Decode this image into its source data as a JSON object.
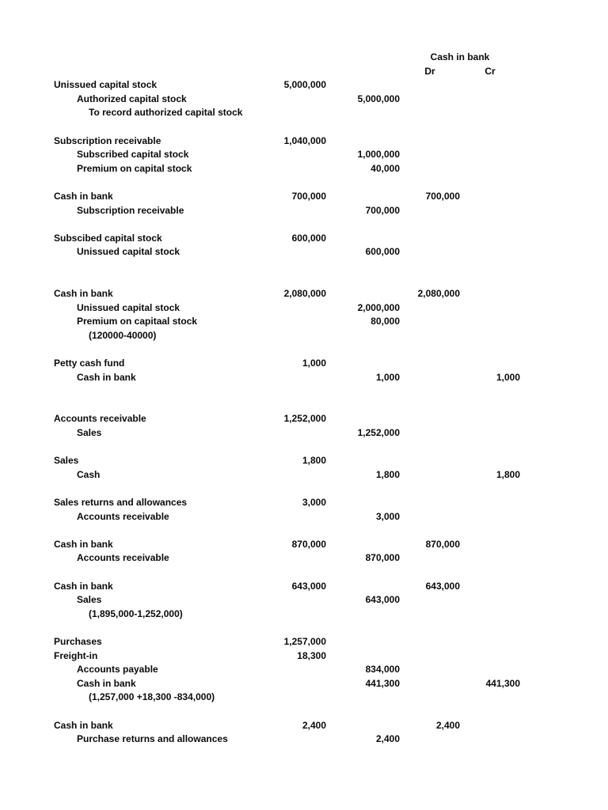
{
  "document": {
    "background": "#ffffff",
    "text_color": "#0a0a0a",
    "bank_header": {
      "group_label": "Cash in bank",
      "dr_label": "Dr",
      "cr_label": "Cr"
    },
    "rows": [
      {
        "label": "Unissued capital stock",
        "indent": 0,
        "debit": "5,000,000"
      },
      {
        "label": "Authorized capital stock",
        "indent": 1,
        "credit": "5,000,000"
      },
      {
        "label": "To record authorized capital stock",
        "indent": 2
      },
      {},
      {
        "label": "Subscription receivable",
        "indent": 0,
        "debit": "1,040,000"
      },
      {
        "label": "Subscribed capital stock",
        "indent": 1,
        "credit": "1,000,000"
      },
      {
        "label": "Premium on capital stock",
        "indent": 1,
        "credit": "40,000"
      },
      {},
      {
        "label": "Cash in bank",
        "indent": 0,
        "debit": "700,000",
        "bank_dr": "700,000"
      },
      {
        "label": "Subscription receivable",
        "indent": 1,
        "credit": "700,000"
      },
      {},
      {
        "label": "Subscibed capital stock",
        "indent": 0,
        "debit": "600,000"
      },
      {
        "label": "Unissued capital stock",
        "indent": 1,
        "credit": "600,000"
      },
      {},
      {},
      {
        "label": "Cash in bank",
        "indent": 0,
        "debit": "2,080,000",
        "bank_dr": "2,080,000"
      },
      {
        "label": "Unissued capital stock",
        "indent": 1,
        "credit": "2,000,000"
      },
      {
        "label": "Premium on capitaal stock",
        "indent": 1,
        "credit": "80,000"
      },
      {
        "label": "(120000-40000)",
        "indent": 2
      },
      {},
      {
        "label": "Petty cash fund",
        "indent": 0,
        "debit": "1,000"
      },
      {
        "label": "Cash in bank",
        "indent": 1,
        "credit": "1,000",
        "bank_cr": "1,000"
      },
      {},
      {},
      {
        "label": "Accounts receivable",
        "indent": 0,
        "debit": "1,252,000"
      },
      {
        "label": "Sales",
        "indent": 1,
        "credit": "1,252,000"
      },
      {},
      {
        "label": "Sales",
        "indent": 0,
        "debit": "1,800"
      },
      {
        "label": "Cash",
        "indent": 1,
        "credit": "1,800",
        "bank_cr": "1,800"
      },
      {},
      {
        "label": "Sales returns and allowances",
        "indent": 0,
        "debit": "3,000"
      },
      {
        "label": "Accounts receivable",
        "indent": 1,
        "credit": "3,000"
      },
      {},
      {
        "label": "Cash in bank",
        "indent": 0,
        "debit": "870,000",
        "bank_dr": "870,000"
      },
      {
        "label": "Accounts receivable",
        "indent": 1,
        "credit": "870,000"
      },
      {},
      {
        "label": "Cash in bank",
        "indent": 0,
        "debit": "643,000",
        "bank_dr": "643,000"
      },
      {
        "label": "Sales",
        "indent": 1,
        "credit": "643,000"
      },
      {
        "label": "(1,895,000-1,252,000)",
        "indent": 2
      },
      {},
      {
        "label": "Purchases",
        "indent": 0,
        "debit": "1,257,000"
      },
      {
        "label": "Freight-in",
        "indent": 0,
        "debit": "18,300"
      },
      {
        "label": "Accounts payable",
        "indent": 1,
        "credit": "834,000"
      },
      {
        "label": "Cash in bank",
        "indent": 1,
        "credit": "441,300",
        "bank_cr": "441,300"
      },
      {
        "label": "(1,257,000 +18,300 -834,000)",
        "indent": 2
      },
      {},
      {
        "label": "Cash in bank",
        "indent": 0,
        "debit": "2,400",
        "bank_dr": "2,400"
      },
      {
        "label": "Purchase returns and allowances",
        "indent": 1,
        "credit": "2,400"
      }
    ]
  }
}
